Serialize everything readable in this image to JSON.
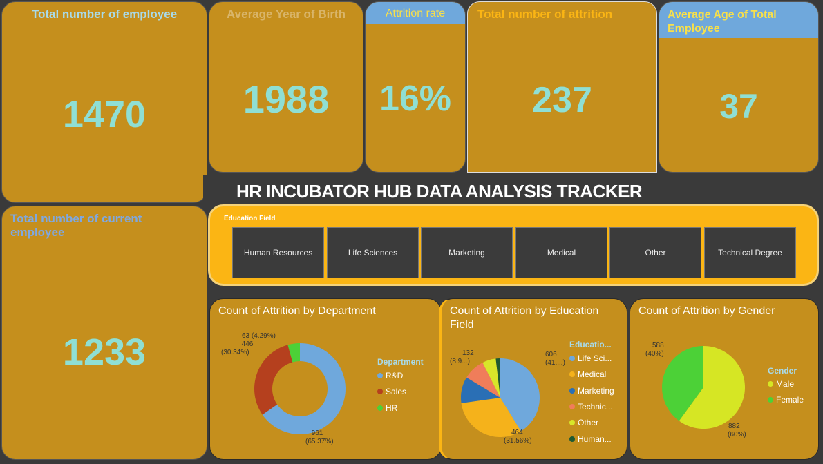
{
  "kpis": {
    "total_employee": {
      "label": "Total number of employee",
      "value": "1470"
    },
    "avg_birth_year": {
      "label": "Average Year of Birth",
      "value": "1988"
    },
    "attrition_rate": {
      "label": "Attrition rate",
      "value": "16%"
    },
    "total_attrition": {
      "label": "Total number of attrition",
      "value": "237"
    },
    "avg_age": {
      "label": "Average Age of Total Employee",
      "value": "37"
    },
    "current_employee": {
      "label": "Total number of current employee",
      "value": "1233"
    }
  },
  "dashboard_title": "HR INCUBATOR HUB DATA ANALYSIS TRACKER",
  "slicer": {
    "label": "Education Field",
    "options": [
      "Human Resources",
      "Life Sciences",
      "Marketing",
      "Medical",
      "Other",
      "Technical Degree"
    ]
  },
  "charts": {
    "department": {
      "title": "Count of Attrition by Department",
      "legend_title": "Department",
      "legend": [
        "R&D",
        "Sales",
        "HR"
      ],
      "labels": {
        "rd": [
          "961",
          "(65.37%)"
        ],
        "sales": [
          "446",
          "(30.34%)"
        ],
        "hr": "63 (4.29%)"
      }
    },
    "education": {
      "title_line1": "Count of Attrition by Education",
      "title_line2": "Field",
      "legend_title": "Educatio...",
      "legend": [
        "Life Sci...",
        "Medical",
        "Marketing",
        "Technic...",
        "Other",
        "Human..."
      ],
      "labels": {
        "life": [
          "606",
          "(41....)"
        ],
        "medical": [
          "464",
          "(31.56%)"
        ],
        "tech": [
          "132",
          "(8.9...)"
        ]
      }
    },
    "gender": {
      "title": "Count of Attrition by Gender",
      "legend_title": "Gender",
      "legend": [
        "Male",
        "Female"
      ],
      "labels": {
        "male": [
          "882",
          "(60%)"
        ],
        "female": [
          "588",
          "(40%)"
        ]
      }
    }
  },
  "chart_data": [
    {
      "type": "pie",
      "title": "Count of Attrition by Department",
      "categories": [
        "R&D",
        "Sales",
        "HR"
      ],
      "values": [
        961,
        446,
        63
      ],
      "percents": [
        65.37,
        30.34,
        4.29
      ],
      "colors": [
        "#6fa8dc",
        "#b5401e",
        "#4cd137"
      ]
    },
    {
      "type": "pie",
      "title": "Count of Attrition by Education Field",
      "categories": [
        "Life Sciences",
        "Medical",
        "Marketing",
        "Technical Degree",
        "Other",
        "Human Resources"
      ],
      "values": [
        606,
        464,
        159,
        132,
        82,
        27
      ],
      "colors": [
        "#6fa8dc",
        "#f5b21b",
        "#2a6fb5",
        "#f07d5a",
        "#d8e62a",
        "#1f5a32"
      ]
    },
    {
      "type": "pie",
      "title": "Count of Attrition by Gender",
      "categories": [
        "Male",
        "Female"
      ],
      "values": [
        882,
        588
      ],
      "percents": [
        60,
        40
      ],
      "colors": [
        "#d6e624",
        "#4cd137"
      ]
    }
  ]
}
